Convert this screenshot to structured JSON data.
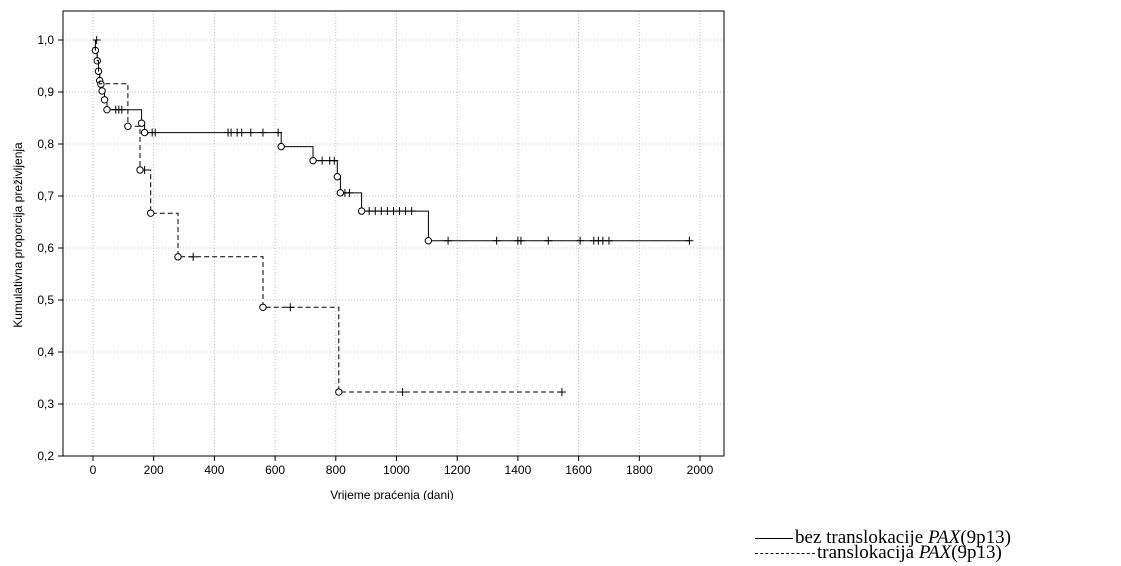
{
  "chart_data": {
    "type": "line",
    "subtype": "kaplan-meier survival curve",
    "xlabel": "Vrijeme praćenja (dani)",
    "ylabel": "Kumulativna proporcija preživljenja",
    "xlim": [
      -100,
      2100
    ],
    "ylim": [
      0.2,
      1.05
    ],
    "x_ticks": [
      0,
      200,
      400,
      600,
      800,
      1000,
      1200,
      1400,
      1600,
      1800,
      2000
    ],
    "y_ticks": [
      0.2,
      0.3,
      0.4,
      0.5,
      0.6,
      0.7,
      0.8,
      0.9,
      1.0
    ],
    "x_tick_labels": [
      "0",
      "200",
      "400",
      "600",
      "800",
      "1000",
      "1200",
      "1400",
      "1600",
      "1800",
      "2000"
    ],
    "y_tick_labels": [
      "0,2",
      "0,3",
      "0,4",
      "0,5",
      "0,6",
      "0,7",
      "0,8",
      "0,9",
      "1,0"
    ],
    "grid": true,
    "legend_position": "bottom-right, outside plot",
    "series": [
      {
        "key": "bez",
        "line_style": "solid",
        "steps": [
          [
            0,
            1.0
          ],
          [
            8,
            0.98
          ],
          [
            14,
            0.96
          ],
          [
            18,
            0.94
          ],
          [
            22,
            0.922
          ],
          [
            26,
            0.915
          ],
          [
            30,
            0.902
          ],
          [
            38,
            0.885
          ],
          [
            46,
            0.866
          ],
          [
            160,
            0.84
          ],
          [
            170,
            0.822
          ],
          [
            620,
            0.795
          ],
          [
            725,
            0.768
          ],
          [
            805,
            0.737
          ],
          [
            815,
            0.706
          ],
          [
            885,
            0.671
          ],
          [
            1105,
            0.614
          ],
          [
            1965,
            0.614
          ]
        ],
        "events": [
          [
            8,
            0.98
          ],
          [
            14,
            0.96
          ],
          [
            18,
            0.94
          ],
          [
            22,
            0.922
          ],
          [
            26,
            0.915
          ],
          [
            30,
            0.902
          ],
          [
            38,
            0.885
          ],
          [
            46,
            0.866
          ],
          [
            160,
            0.84
          ],
          [
            170,
            0.822
          ],
          [
            620,
            0.795
          ],
          [
            725,
            0.768
          ],
          [
            805,
            0.737
          ],
          [
            815,
            0.706
          ],
          [
            885,
            0.671
          ],
          [
            1105,
            0.614
          ]
        ],
        "censored": [
          [
            12,
            1.0
          ],
          [
            75,
            0.866
          ],
          [
            85,
            0.866
          ],
          [
            95,
            0.866
          ],
          [
            195,
            0.822
          ],
          [
            205,
            0.822
          ],
          [
            445,
            0.822
          ],
          [
            455,
            0.822
          ],
          [
            475,
            0.822
          ],
          [
            490,
            0.822
          ],
          [
            520,
            0.822
          ],
          [
            560,
            0.822
          ],
          [
            610,
            0.822
          ],
          [
            755,
            0.768
          ],
          [
            780,
            0.768
          ],
          [
            795,
            0.768
          ],
          [
            830,
            0.706
          ],
          [
            845,
            0.706
          ],
          [
            910,
            0.671
          ],
          [
            930,
            0.671
          ],
          [
            950,
            0.671
          ],
          [
            970,
            0.671
          ],
          [
            990,
            0.671
          ],
          [
            1010,
            0.671
          ],
          [
            1030,
            0.671
          ],
          [
            1050,
            0.671
          ],
          [
            1170,
            0.614
          ],
          [
            1330,
            0.614
          ],
          [
            1400,
            0.614
          ],
          [
            1410,
            0.614
          ],
          [
            1500,
            0.614
          ],
          [
            1605,
            0.614
          ],
          [
            1650,
            0.614
          ],
          [
            1665,
            0.614
          ],
          [
            1680,
            0.614
          ],
          [
            1700,
            0.614
          ],
          [
            1965,
            0.614
          ]
        ]
      },
      {
        "key": "trans",
        "line_style": "dashed",
        "steps": [
          [
            0,
            1.0
          ],
          [
            8,
            0.98
          ],
          [
            14,
            0.96
          ],
          [
            18,
            0.94
          ],
          [
            22,
            0.916
          ],
          [
            115,
            0.834
          ],
          [
            155,
            0.75
          ],
          [
            190,
            0.667
          ],
          [
            280,
            0.583
          ],
          [
            560,
            0.486
          ],
          [
            810,
            0.323
          ],
          [
            1545,
            0.323
          ]
        ],
        "events": [
          [
            115,
            0.834
          ],
          [
            155,
            0.75
          ],
          [
            190,
            0.667
          ],
          [
            280,
            0.583
          ],
          [
            560,
            0.486
          ],
          [
            810,
            0.323
          ]
        ],
        "censored": [
          [
            170,
            0.75
          ],
          [
            330,
            0.583
          ],
          [
            650,
            0.486
          ],
          [
            1020,
            0.323
          ],
          [
            1545,
            0.323
          ]
        ]
      }
    ]
  },
  "legend": {
    "items": [
      {
        "prefix": "bez  translokacije ",
        "gene": "PAX",
        "suffix": "(9p13)"
      },
      {
        "prefix": "translokacija ",
        "gene": "PAX",
        "suffix": "(9p13)"
      }
    ]
  }
}
